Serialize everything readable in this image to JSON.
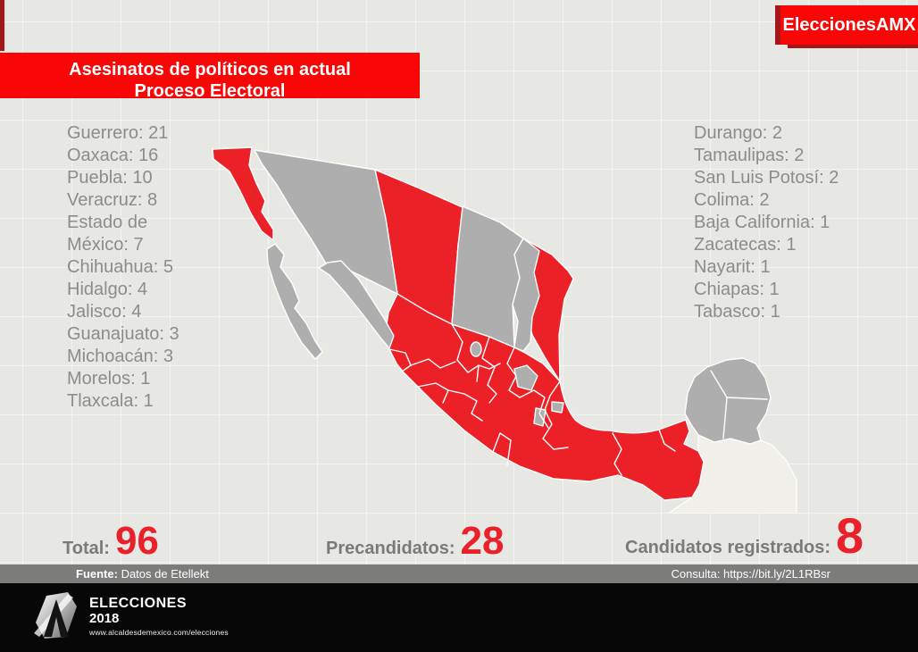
{
  "badge": {
    "label": "EleccionesAMX"
  },
  "title": {
    "line1": "Asesinatos de políticos en actual",
    "line2": "Proceso Electoral"
  },
  "left_states": [
    {
      "state": "Guerrero",
      "count": 21
    },
    {
      "state": "Oaxaca",
      "count": 16
    },
    {
      "state": "Puebla",
      "count": 10
    },
    {
      "state": "Veracruz",
      "count": 8
    },
    {
      "state": "Estado de México",
      "count": 7
    },
    {
      "state": "Chihuahua",
      "count": 5
    },
    {
      "state": "Hidalgo",
      "count": 4
    },
    {
      "state": "Jalisco",
      "count": 4
    },
    {
      "state": "Guanajuato",
      "count": 3
    },
    {
      "state": "Michoacán",
      "count": 3
    },
    {
      "state": "Morelos",
      "count": 1
    },
    {
      "state": "Tlaxcala",
      "count": 1
    }
  ],
  "right_states": [
    {
      "state": "Durango",
      "count": 2
    },
    {
      "state": "Tamaulipas",
      "count": 2
    },
    {
      "state": "San Luis Potosí",
      "count": 2
    },
    {
      "state": "Colima",
      "count": 2
    },
    {
      "state": "Baja California",
      "count": 1
    },
    {
      "state": "Zacatecas",
      "count": 1
    },
    {
      "state": "Nayarit",
      "count": 1
    },
    {
      "state": "Chiapas",
      "count": 1
    },
    {
      "state": "Tabasco",
      "count": 1
    }
  ],
  "stats": {
    "total_label": "Total:",
    "total_value": "96",
    "precandidatos_label": "Precandidatos:",
    "precandidatos_value": "28",
    "candidatos_label": "Candidatos registrados:",
    "candidatos_value": "8"
  },
  "footer": {
    "fuente_label": "Fuente:",
    "fuente_value": " Datos de Etellekt",
    "consulta": "Consulta: https://bit.ly/2L1RBsr"
  },
  "brand": {
    "line1": "ELECCIONES",
    "line2": "2018",
    "url": "www.alcaldesdemexico.com/elecciones"
  },
  "colors": {
    "highlight_red": "#EC2127",
    "title_red": "#F90606",
    "dark_red_accent": "#A3171B",
    "muted_state_gray": "#AEAEAE",
    "background": "#E7E7E4",
    "footer_gray": "#7C7C7B",
    "footer_black": "#070707",
    "list_text_gray": "#8C8C8C",
    "number_red": "#E8212B"
  },
  "chart_data": {
    "type": "heatmap",
    "title": "Asesinatos de políticos en actual Proceso Electoral",
    "categories": [
      "Guerrero",
      "Oaxaca",
      "Puebla",
      "Veracruz",
      "Estado de México",
      "Chihuahua",
      "Hidalgo",
      "Jalisco",
      "Guanajuato",
      "Michoacán",
      "Morelos",
      "Tlaxcala",
      "Durango",
      "Tamaulipas",
      "San Luis Potosí",
      "Colima",
      "Baja California",
      "Zacatecas",
      "Nayarit",
      "Chiapas",
      "Tabasco"
    ],
    "values": [
      21,
      16,
      10,
      8,
      7,
      5,
      4,
      4,
      3,
      3,
      1,
      1,
      2,
      2,
      2,
      2,
      1,
      1,
      1,
      1,
      1
    ],
    "states_without_cases_shown_gray": [
      "Sonora",
      "Baja California Sur",
      "Sinaloa",
      "Coahuila",
      "Nuevo León",
      "Aguascalientes",
      "Querétaro",
      "Ciudad de México",
      "Campeche",
      "Yucatán",
      "Quintana Roo"
    ],
    "total": 96,
    "precandidatos": 28,
    "candidatos_registrados": 8
  }
}
